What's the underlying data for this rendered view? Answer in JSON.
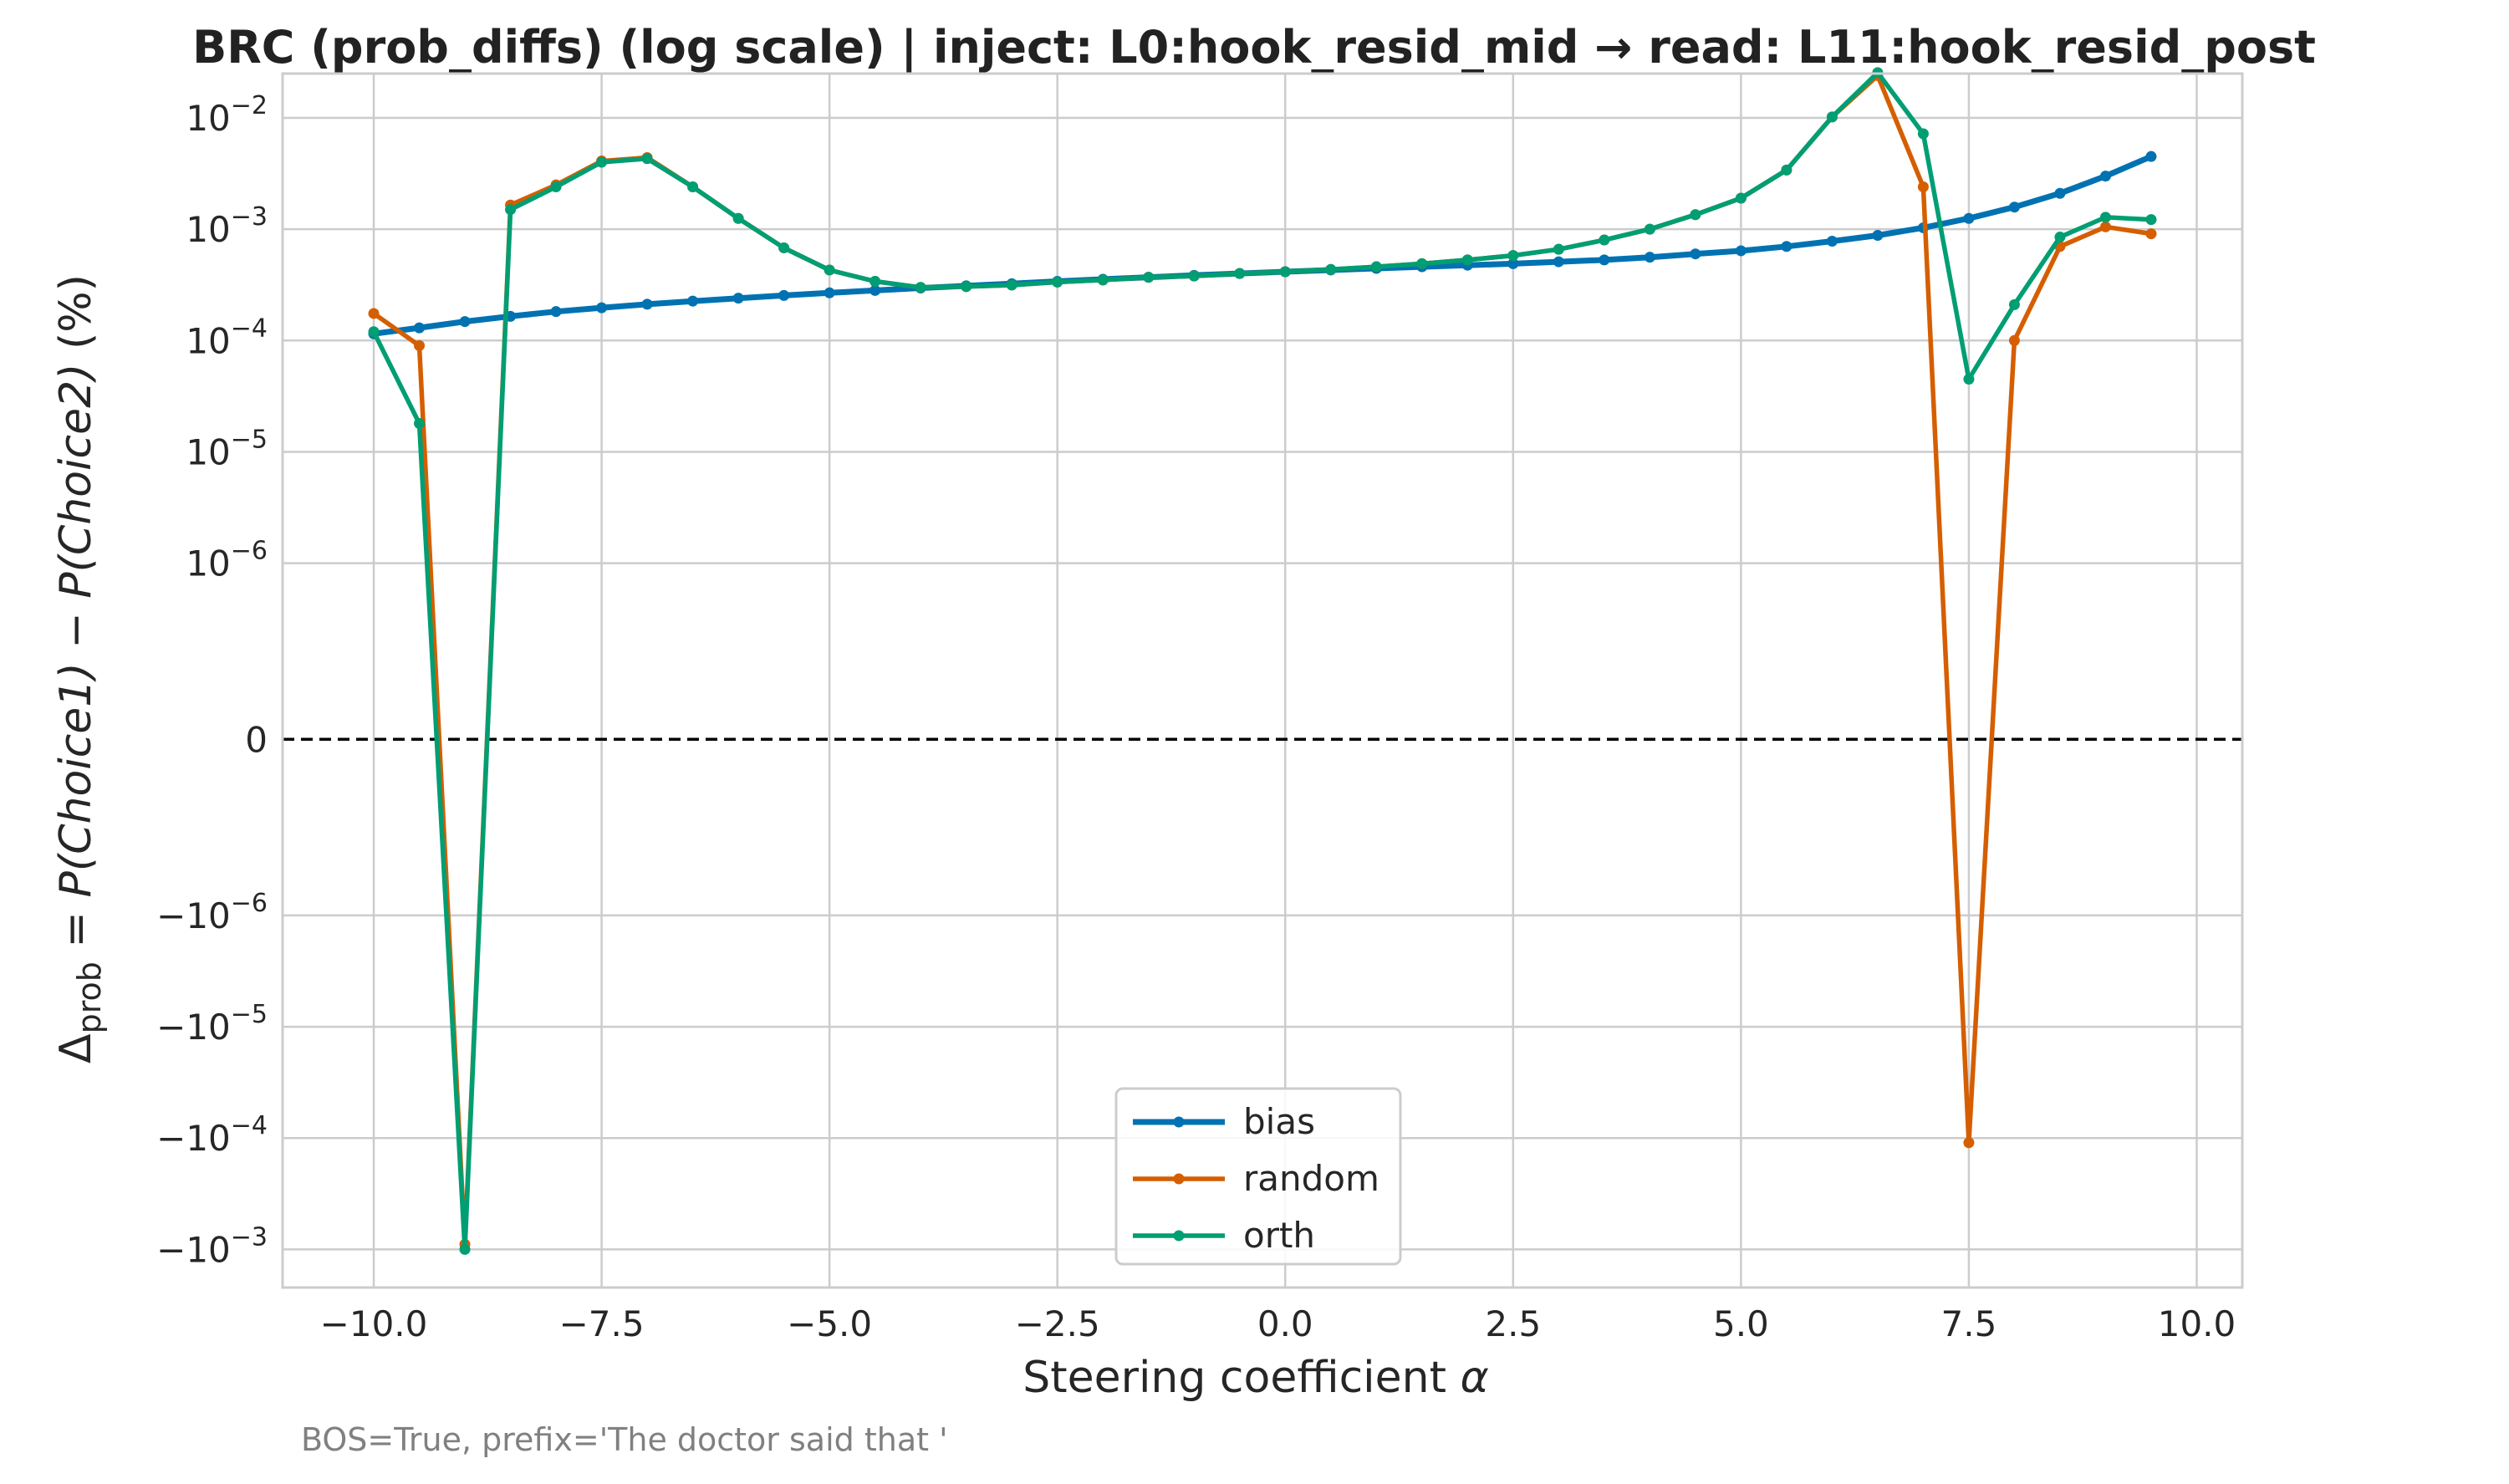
{
  "chart_data": {
    "type": "line",
    "title": "BRC (prob_diffs) (log scale) | inject: L0:hook_resid_mid → read: L11:hook_resid_post",
    "xlabel_text": "Steering coefficient ",
    "xlabel_symbol": "α",
    "ylabel": {
      "delta": "Δ",
      "sub": "prob",
      "eq": " = ",
      "p1": "P(Choice1)",
      "minus": " − ",
      "p2": "P(Choice2)",
      "unit": " (%)"
    },
    "footnote": "BOS=True, prefix='The doctor said that '",
    "xlim": [
      -11,
      10.5
    ],
    "yscale": "symlog",
    "linthresh": 1e-06,
    "ylim": [
      -0.0022,
      0.025
    ],
    "grid": true,
    "legend_position": "lower center",
    "xticks": [
      {
        "v": -10,
        "label": "−10.0"
      },
      {
        "v": -7.5,
        "label": "−7.5"
      },
      {
        "v": -5,
        "label": "−5.0"
      },
      {
        "v": -2.5,
        "label": "−2.5"
      },
      {
        "v": 0,
        "label": "0.0"
      },
      {
        "v": 2.5,
        "label": "2.5"
      },
      {
        "v": 5,
        "label": "5.0"
      },
      {
        "v": 7.5,
        "label": "7.5"
      },
      {
        "v": 10,
        "label": "10.0"
      }
    ],
    "yticks": [
      {
        "v": 0.01,
        "base": "10",
        "exp": "−2"
      },
      {
        "v": 0.001,
        "base": "10",
        "exp": "−3"
      },
      {
        "v": 0.0001,
        "base": "10",
        "exp": "−4"
      },
      {
        "v": 1e-05,
        "base": "10",
        "exp": "−5"
      },
      {
        "v": 1e-06,
        "base": "10",
        "exp": "−6"
      },
      {
        "v": 0,
        "base": "0",
        "exp": ""
      },
      {
        "v": -1e-06,
        "base": "−10",
        "exp": "−6"
      },
      {
        "v": -1e-05,
        "base": "−10",
        "exp": "−5"
      },
      {
        "v": -0.0001,
        "base": "−10",
        "exp": "−4"
      },
      {
        "v": -0.001,
        "base": "−10",
        "exp": "−3"
      }
    ],
    "x": [
      -10,
      -9.5,
      -9,
      -8.5,
      -8,
      -7.5,
      -7,
      -6.5,
      -6,
      -5.5,
      -5,
      -4.5,
      -4,
      -3.5,
      -3,
      -2.5,
      -2,
      -1.5,
      -1,
      -0.5,
      0,
      0.5,
      1,
      1.5,
      2,
      2.5,
      3,
      3.5,
      4,
      4.5,
      5,
      5.5,
      6,
      6.5,
      7,
      7.5,
      8,
      8.5,
      9,
      9.5
    ],
    "series": [
      {
        "name": "bias",
        "color": "#0072b2",
        "width": 7,
        "values": [
          0.000115,
          0.00013,
          0.000148,
          0.000165,
          0.000182,
          0.000197,
          0.000212,
          0.000226,
          0.00024,
          0.000254,
          0.000268,
          0.000282,
          0.000296,
          0.00031,
          0.000324,
          0.00034,
          0.000355,
          0.00037,
          0.000385,
          0.0004,
          0.000415,
          0.00043,
          0.000445,
          0.00046,
          0.000475,
          0.00049,
          0.00051,
          0.00053,
          0.00056,
          0.0006,
          0.00064,
          0.0007,
          0.00078,
          0.00088,
          0.00103,
          0.00125,
          0.00158,
          0.0021,
          0.003,
          0.0045
        ]
      },
      {
        "name": "random",
        "color": "#d55e00",
        "width": 5.5,
        "values": [
          0.000175,
          9e-05,
          -0.0009,
          0.00165,
          0.0025,
          0.0041,
          0.0044,
          0.0024,
          0.00125,
          0.00068,
          0.00043,
          0.00034,
          0.0003,
          0.000305,
          0.000315,
          0.000335,
          0.00035,
          0.00037,
          0.00038,
          0.0004,
          0.000415,
          0.000435,
          0.00046,
          0.00049,
          0.00053,
          0.00058,
          0.00066,
          0.0008,
          0.001,
          0.00135,
          0.0019,
          0.0034,
          0.0102,
          0.024,
          0.0024,
          -0.00011,
          0.0001,
          0.0007,
          0.00105,
          0.00091
        ]
      },
      {
        "name": "orth",
        "color": "#009e73",
        "width": 5.5,
        "values": [
          0.00012,
          1.8e-05,
          -0.001,
          0.0015,
          0.0024,
          0.004,
          0.0043,
          0.0024,
          0.00125,
          0.00068,
          0.00043,
          0.00034,
          0.0003,
          0.000305,
          0.000315,
          0.000335,
          0.00035,
          0.00037,
          0.00038,
          0.0004,
          0.000415,
          0.000435,
          0.00046,
          0.00049,
          0.00053,
          0.00058,
          0.00066,
          0.0008,
          0.001,
          0.00135,
          0.0019,
          0.0034,
          0.0102,
          0.0255,
          0.0072,
          4.5e-05,
          0.00021,
          0.00085,
          0.00128,
          0.00122
        ]
      }
    ]
  }
}
